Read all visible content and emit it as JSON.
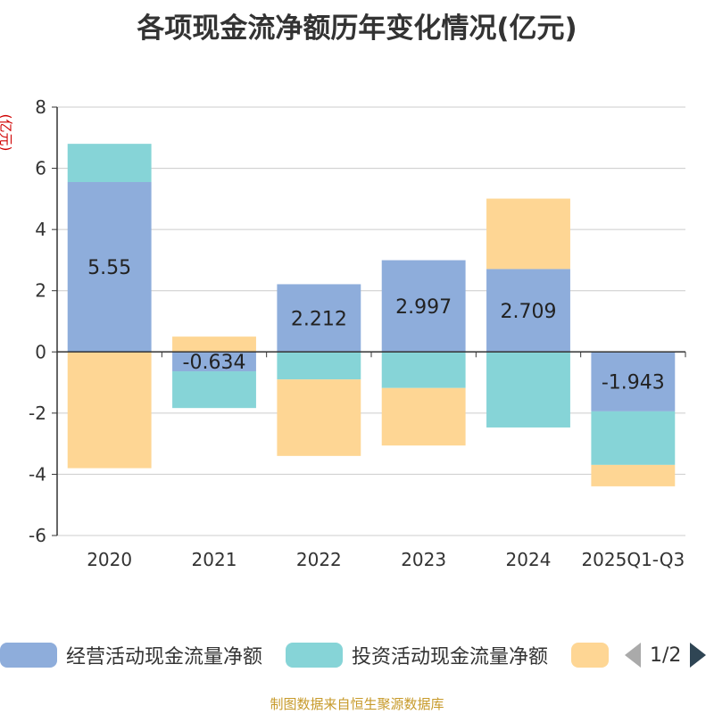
{
  "chart_data": {
    "type": "bar",
    "stacked": true,
    "title": "各项现金流净额历年变化情况(亿元)",
    "ylabel": "(亿元)",
    "ylim": [
      -6,
      8
    ],
    "yticks": [
      -6,
      -4,
      -2,
      0,
      2,
      4,
      6,
      8
    ],
    "categories": [
      "2020",
      "2021",
      "2022",
      "2023",
      "2024",
      "2025Q1-Q3"
    ],
    "series": [
      {
        "name": "经营活动现金流量净额",
        "color": "#8eaddb",
        "values": [
          5.55,
          -0.634,
          2.212,
          2.997,
          2.709,
          -1.943
        ],
        "labels": [
          "5.55",
          "-0.634",
          "2.212",
          "2.997",
          "2.709",
          "-1.943"
        ]
      },
      {
        "name": "投资活动现金流量净额",
        "color": "#86d4d7",
        "values": [
          1.25,
          -1.2,
          -0.9,
          -1.18,
          -2.47,
          -1.75
        ]
      },
      {
        "name": "",
        "color": "#fed694",
        "values": [
          -3.8,
          0.5,
          -2.5,
          -1.88,
          2.3,
          -0.7
        ]
      }
    ],
    "grid": true,
    "legend": "bottom"
  },
  "legend": {
    "items": [
      {
        "label": "经营活动现金流量净额",
        "color": "#8eaddb"
      },
      {
        "label": "投资活动现金流量净额",
        "color": "#86d4d7"
      },
      {
        "label": "",
        "color": "#fed694"
      }
    ],
    "pager": "1/2"
  },
  "source": "制图数据来自恒生聚源数据库"
}
